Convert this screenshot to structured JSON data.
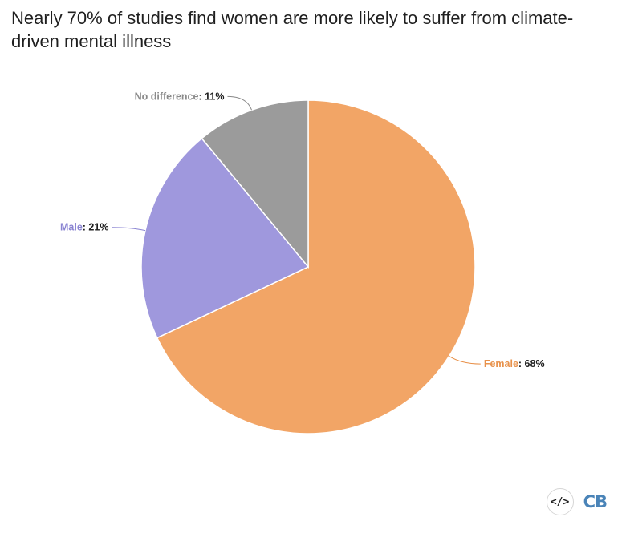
{
  "chart_data": {
    "type": "pie",
    "title": "Nearly 70% of studies find women are more likely to suffer from climate-driven mental illness",
    "slices": [
      {
        "name": "Female",
        "value": 68,
        "display": "68%",
        "color": "#f2a566",
        "label_color": "#e8914a",
        "label_side": "right"
      },
      {
        "name": "Male",
        "value": 21,
        "display": "21%",
        "color": "#9f98dd",
        "label_color": "#8a84d2",
        "label_side": "left"
      },
      {
        "name": "No difference",
        "value": 11,
        "display": "11%",
        "color": "#9b9b9b",
        "label_color": "#8a8a8a",
        "label_side": "left"
      }
    ],
    "legend": "none"
  },
  "footer": {
    "embed_icon": "code-embed-icon",
    "embed_glyph": "</>",
    "logo_text": "CB"
  }
}
